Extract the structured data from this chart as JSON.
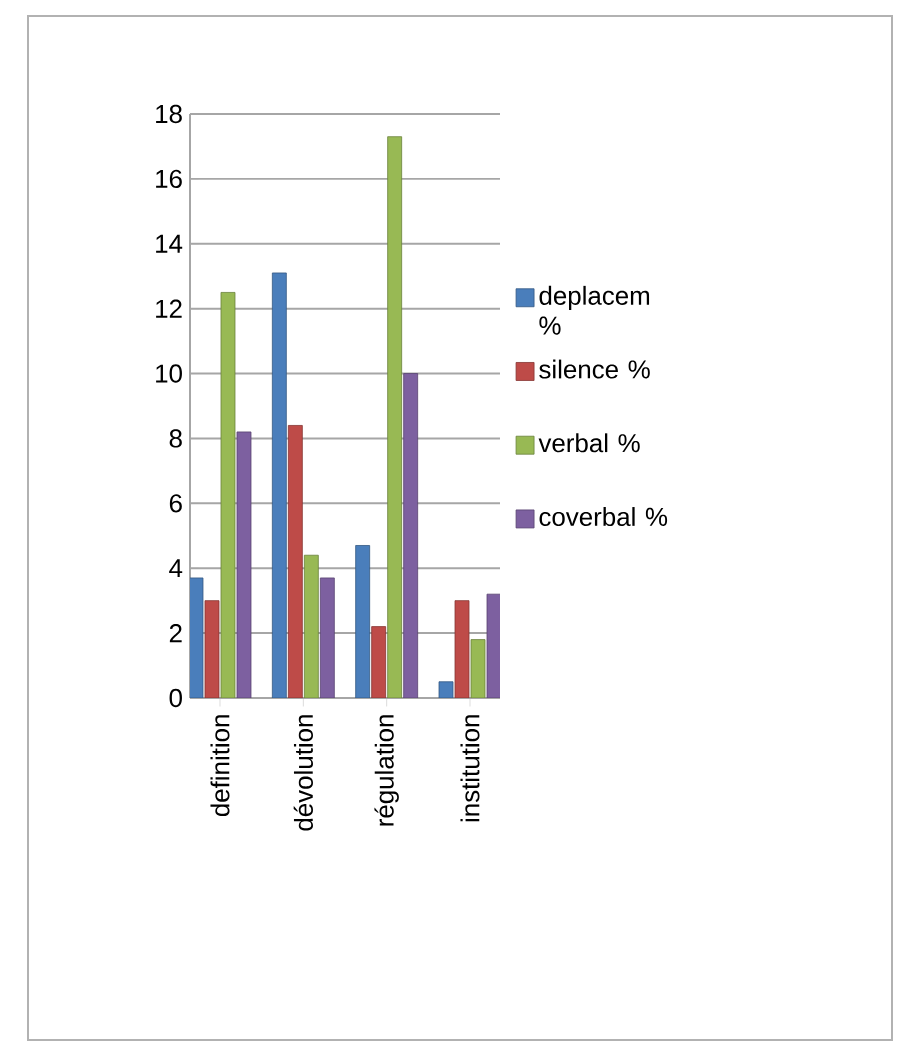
{
  "chart_data": {
    "type": "bar",
    "categories": [
      "definition",
      "dévolution",
      "régulation",
      "institution"
    ],
    "series": [
      {
        "name": "deplacem %",
        "color": "#4a7ebb",
        "values": [
          3.7,
          13.1,
          4.7,
          0.5
        ]
      },
      {
        "name": "silence %",
        "color": "#be4b48",
        "values": [
          3.0,
          8.4,
          2.2,
          3.0
        ]
      },
      {
        "name": "verbal %",
        "color": "#98b954",
        "values": [
          12.5,
          4.4,
          17.3,
          1.8
        ]
      },
      {
        "name": "coverbal %",
        "color": "#7d60a0",
        "values": [
          8.2,
          3.7,
          10.0,
          3.2
        ]
      }
    ],
    "ylim": [
      0,
      18
    ],
    "yticks": [
      0,
      2,
      4,
      6,
      8,
      10,
      12,
      14,
      16,
      18
    ],
    "grid": "y",
    "legend": "right"
  }
}
